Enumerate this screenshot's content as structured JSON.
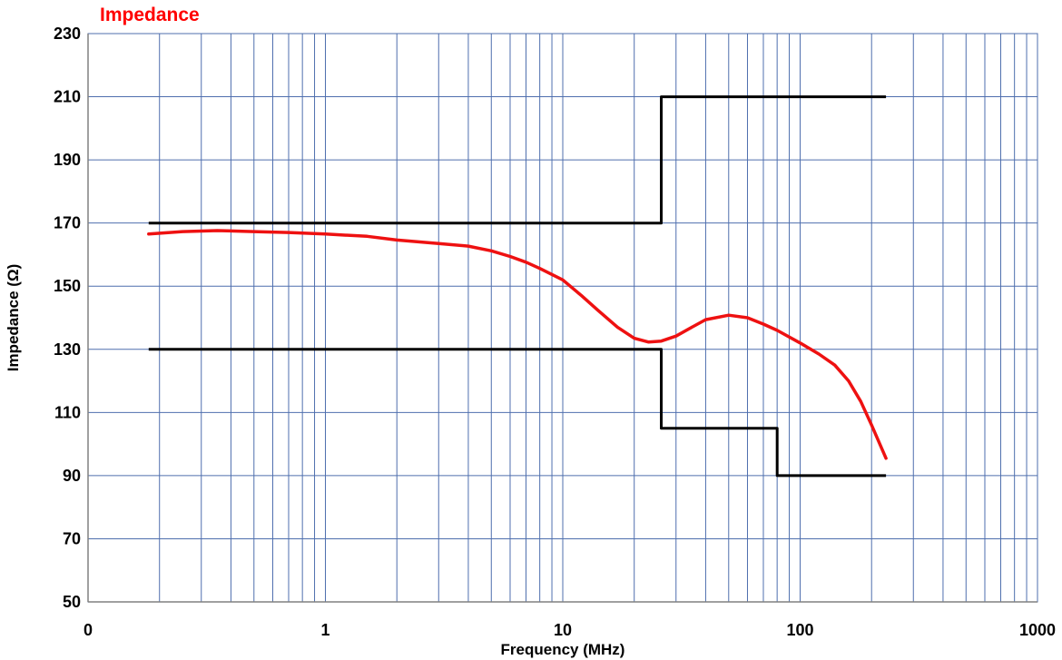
{
  "chart_data": {
    "type": "line",
    "title": "Impedance",
    "xlabel": "Frequency (MHz)",
    "ylabel": "Impedance (Ω)",
    "x_scale": "log",
    "xlim": [
      0.1,
      1000
    ],
    "ylim": [
      50,
      230
    ],
    "x_tick_labels": [
      "0",
      "1",
      "10",
      "100",
      "1000"
    ],
    "y_ticks": [
      50,
      70,
      90,
      110,
      130,
      150,
      170,
      190,
      210,
      230
    ],
    "grid": true,
    "legend": "none",
    "colors": {
      "title": "#ff0000",
      "measured": "#ee1111",
      "limits": "#000000",
      "grid": "#4f6fae"
    },
    "series": [
      {
        "role": "measured",
        "points": [
          [
            0.18,
            166.5
          ],
          [
            0.25,
            167.3
          ],
          [
            0.35,
            167.6
          ],
          [
            0.5,
            167.3
          ],
          [
            0.7,
            167.0
          ],
          [
            1.0,
            166.5
          ],
          [
            1.5,
            165.8
          ],
          [
            2.0,
            164.6
          ],
          [
            3.0,
            163.5
          ],
          [
            4.0,
            162.7
          ],
          [
            5.0,
            161.2
          ],
          [
            6.0,
            159.4
          ],
          [
            7.0,
            157.6
          ],
          [
            8.0,
            155.6
          ],
          [
            10.0,
            152.0
          ],
          [
            12.0,
            147.0
          ],
          [
            14.0,
            142.5
          ],
          [
            17.0,
            137.0
          ],
          [
            20.0,
            133.5
          ],
          [
            23.0,
            132.3
          ],
          [
            26.0,
            132.6
          ],
          [
            30.0,
            134.2
          ],
          [
            35.0,
            137.0
          ],
          [
            40.0,
            139.4
          ],
          [
            50.0,
            140.8
          ],
          [
            60.0,
            140.0
          ],
          [
            70.0,
            138.0
          ],
          [
            80.0,
            136.0
          ],
          [
            100.0,
            132.0
          ],
          [
            120.0,
            128.5
          ],
          [
            140.0,
            125.0
          ],
          [
            160.0,
            120.0
          ],
          [
            180.0,
            113.5
          ],
          [
            200.0,
            106.0
          ],
          [
            230.0,
            95.5
          ]
        ]
      },
      {
        "role": "upper-limit",
        "points": [
          [
            0.18,
            170
          ],
          [
            26,
            170
          ],
          [
            26,
            210
          ],
          [
            230,
            210
          ]
        ]
      },
      {
        "role": "lower-limit",
        "points": [
          [
            0.18,
            130
          ],
          [
            26,
            130
          ],
          [
            26,
            105
          ],
          [
            80,
            105
          ],
          [
            80,
            90
          ],
          [
            230,
            90
          ]
        ]
      }
    ]
  }
}
